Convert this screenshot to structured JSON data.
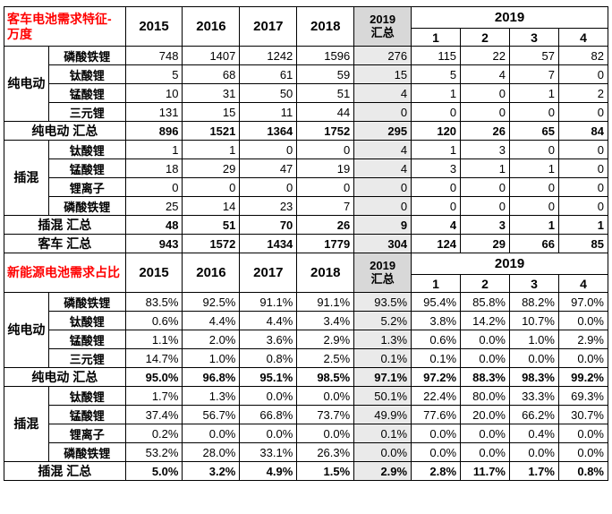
{
  "colors": {
    "red": "#FF0000",
    "sumhdr": "#d8d8d8",
    "sumcol": "#eaeaea",
    "border": "#000000"
  },
  "chart_data": {
    "type": "table",
    "columns": {
      "years": [
        "2015",
        "2016",
        "2017",
        "2018"
      ],
      "summary_line1": "2019",
      "summary_line2": "汇总",
      "group_year": "2019",
      "quarters": [
        "1",
        "2",
        "3",
        "4"
      ]
    },
    "sections": [
      {
        "title": "客车电池需求特征-万度",
        "blocks": [
          {
            "kind": "group",
            "name": "纯电动",
            "rows": [
              {
                "label": "磷酸铁锂",
                "values": [
                  "748",
                  "1407",
                  "1242",
                  "1596",
                  "276",
                  "115",
                  "22",
                  "57",
                  "82"
                ]
              },
              {
                "label": "钛酸锂",
                "values": [
                  "5",
                  "68",
                  "61",
                  "59",
                  "15",
                  "5",
                  "4",
                  "7",
                  "0"
                ]
              },
              {
                "label": "锰酸锂",
                "values": [
                  "10",
                  "31",
                  "50",
                  "51",
                  "4",
                  "1",
                  "0",
                  "1",
                  "2"
                ]
              },
              {
                "label": "三元锂",
                "values": [
                  "131",
                  "15",
                  "11",
                  "44",
                  "0",
                  "0",
                  "0",
                  "0",
                  "0"
                ]
              }
            ]
          },
          {
            "kind": "summary",
            "label": "纯电动 汇总",
            "values": [
              "896",
              "1521",
              "1364",
              "1752",
              "295",
              "120",
              "26",
              "65",
              "84"
            ]
          },
          {
            "kind": "group",
            "name": "插混",
            "rows": [
              {
                "label": "钛酸锂",
                "values": [
                  "1",
                  "1",
                  "0",
                  "0",
                  "4",
                  "1",
                  "3",
                  "0",
                  "0"
                ]
              },
              {
                "label": "锰酸锂",
                "values": [
                  "18",
                  "29",
                  "47",
                  "19",
                  "4",
                  "3",
                  "1",
                  "1",
                  "0"
                ]
              },
              {
                "label": "锂离子",
                "values": [
                  "0",
                  "0",
                  "0",
                  "0",
                  "0",
                  "0",
                  "0",
                  "0",
                  "0"
                ]
              },
              {
                "label": "磷酸铁锂",
                "values": [
                  "25",
                  "14",
                  "23",
                  "7",
                  "0",
                  "0",
                  "0",
                  "0",
                  "0"
                ]
              }
            ]
          },
          {
            "kind": "summary",
            "label": "插混 汇总",
            "values": [
              "48",
              "51",
              "70",
              "26",
              "9",
              "4",
              "3",
              "1",
              "1"
            ]
          },
          {
            "kind": "summary",
            "label": "客车 汇总",
            "values": [
              "943",
              "1572",
              "1434",
              "1779",
              "304",
              "124",
              "29",
              "66",
              "85"
            ]
          }
        ]
      },
      {
        "title": "新能源电池需求占比",
        "blocks": [
          {
            "kind": "group",
            "name": "纯电动",
            "rows": [
              {
                "label": "磷酸铁锂",
                "values": [
                  "83.5%",
                  "92.5%",
                  "91.1%",
                  "91.1%",
                  "93.5%",
                  "95.4%",
                  "85.8%",
                  "88.2%",
                  "97.0%"
                ]
              },
              {
                "label": "钛酸锂",
                "values": [
                  "0.6%",
                  "4.4%",
                  "4.4%",
                  "3.4%",
                  "5.2%",
                  "3.8%",
                  "14.2%",
                  "10.7%",
                  "0.0%"
                ]
              },
              {
                "label": "锰酸锂",
                "values": [
                  "1.1%",
                  "2.0%",
                  "3.6%",
                  "2.9%",
                  "1.3%",
                  "0.6%",
                  "0.0%",
                  "1.0%",
                  "2.9%"
                ]
              },
              {
                "label": "三元锂",
                "values": [
                  "14.7%",
                  "1.0%",
                  "0.8%",
                  "2.5%",
                  "0.1%",
                  "0.1%",
                  "0.0%",
                  "0.0%",
                  "0.0%"
                ]
              }
            ]
          },
          {
            "kind": "summary",
            "label": "纯电动 汇总",
            "values": [
              "95.0%",
              "96.8%",
              "95.1%",
              "98.5%",
              "97.1%",
              "97.2%",
              "88.3%",
              "98.3%",
              "99.2%"
            ]
          },
          {
            "kind": "group",
            "name": "插混",
            "rows": [
              {
                "label": "钛酸锂",
                "values": [
                  "1.7%",
                  "1.3%",
                  "0.0%",
                  "0.0%",
                  "50.1%",
                  "22.4%",
                  "80.0%",
                  "33.3%",
                  "69.3%"
                ]
              },
              {
                "label": "锰酸锂",
                "values": [
                  "37.4%",
                  "56.7%",
                  "66.8%",
                  "73.7%",
                  "49.9%",
                  "77.6%",
                  "20.0%",
                  "66.2%",
                  "30.7%"
                ]
              },
              {
                "label": "锂离子",
                "values": [
                  "0.2%",
                  "0.0%",
                  "0.0%",
                  "0.0%",
                  "0.1%",
                  "0.0%",
                  "0.0%",
                  "0.4%",
                  "0.0%"
                ]
              },
              {
                "label": "磷酸铁锂",
                "values": [
                  "53.2%",
                  "28.0%",
                  "33.1%",
                  "26.3%",
                  "0.0%",
                  "0.0%",
                  "0.0%",
                  "0.0%",
                  "0.0%"
                ]
              }
            ]
          },
          {
            "kind": "summary",
            "label": "插混 汇总",
            "values": [
              "5.0%",
              "3.2%",
              "4.9%",
              "1.5%",
              "2.9%",
              "2.8%",
              "11.7%",
              "1.7%",
              "0.8%"
            ]
          }
        ]
      }
    ]
  }
}
